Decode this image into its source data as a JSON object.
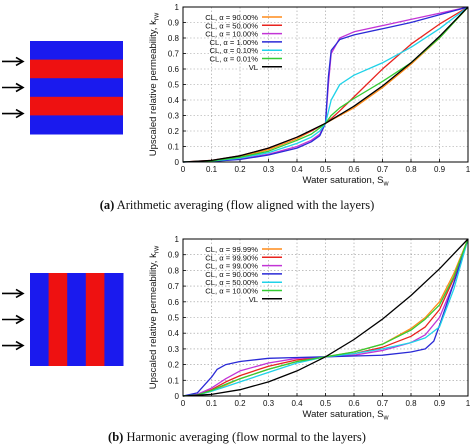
{
  "chart_data": [
    {
      "type": "line",
      "panel_label": "(a)",
      "caption": "Arithmetic averaging (flow aligned with the layers)",
      "xlabel": "Water saturation, S",
      "xlabel_sub": "w",
      "ylabel": "Upscaled relative permeability, k",
      "ylabel_sub": "rw",
      "xlim": [
        0,
        1
      ],
      "ylim": [
        0,
        1
      ],
      "xticks": [
        "0",
        "0.1",
        "0.2",
        "0.3",
        "0.4",
        "0.5",
        "0.6",
        "0.7",
        "0.8",
        "0.9",
        "1"
      ],
      "yticks": [
        "0",
        "0.1",
        "0.2",
        "0.3",
        "0.4",
        "0.5",
        "0.6",
        "0.7",
        "0.8",
        "0.9",
        "1"
      ],
      "grid": true,
      "legend_position": "top-left",
      "layer_sketch": "horizontal",
      "series": [
        {
          "name": "CL, α = 90.00%",
          "color": "#ff8c1a",
          "x": [
            0,
            0.1,
            0.2,
            0.3,
            0.4,
            0.45,
            0.48,
            0.5,
            0.52,
            0.55,
            0.6,
            0.7,
            0.8,
            0.9,
            1
          ],
          "y": [
            0,
            0.008,
            0.035,
            0.08,
            0.15,
            0.2,
            0.23,
            0.25,
            0.27,
            0.3,
            0.35,
            0.48,
            0.63,
            0.8,
            1
          ]
        },
        {
          "name": "CL, α = 50.00%",
          "color": "#e8231e",
          "x": [
            0,
            0.1,
            0.2,
            0.3,
            0.4,
            0.45,
            0.48,
            0.5,
            0.52,
            0.55,
            0.6,
            0.7,
            0.8,
            0.9,
            1
          ],
          "y": [
            0,
            0.01,
            0.04,
            0.09,
            0.16,
            0.2,
            0.23,
            0.25,
            0.28,
            0.33,
            0.42,
            0.6,
            0.76,
            0.89,
            1
          ]
        },
        {
          "name": "CL, α = 10.00%",
          "color": "#c234d6",
          "x": [
            0,
            0.1,
            0.2,
            0.3,
            0.4,
            0.45,
            0.48,
            0.5,
            0.51,
            0.52,
            0.55,
            0.6,
            0.7,
            0.8,
            0.9,
            1
          ],
          "y": [
            0,
            0.005,
            0.02,
            0.05,
            0.1,
            0.14,
            0.18,
            0.25,
            0.5,
            0.7,
            0.8,
            0.84,
            0.88,
            0.92,
            0.96,
            1
          ]
        },
        {
          "name": "CL, α = 1.00%",
          "color": "#2a2ad6",
          "x": [
            0,
            0.1,
            0.2,
            0.3,
            0.4,
            0.45,
            0.48,
            0.5,
            0.51,
            0.52,
            0.55,
            0.6,
            0.7,
            0.8,
            0.9,
            1
          ],
          "y": [
            0,
            0.004,
            0.016,
            0.045,
            0.09,
            0.13,
            0.17,
            0.25,
            0.55,
            0.72,
            0.79,
            0.82,
            0.86,
            0.9,
            0.95,
            1
          ]
        },
        {
          "name": "CL, α = 0.10%",
          "color": "#1fd2e8",
          "x": [
            0,
            0.1,
            0.2,
            0.3,
            0.4,
            0.45,
            0.48,
            0.5,
            0.52,
            0.55,
            0.6,
            0.7,
            0.8,
            0.9,
            1
          ],
          "y": [
            0,
            0.006,
            0.025,
            0.06,
            0.12,
            0.16,
            0.2,
            0.25,
            0.4,
            0.5,
            0.56,
            0.64,
            0.74,
            0.86,
            1
          ]
        },
        {
          "name": "CL, α = 0.01%",
          "color": "#33cc33",
          "x": [
            0,
            0.1,
            0.2,
            0.3,
            0.4,
            0.45,
            0.48,
            0.5,
            0.52,
            0.55,
            0.6,
            0.7,
            0.8,
            0.9,
            1
          ],
          "y": [
            0,
            0.007,
            0.03,
            0.07,
            0.14,
            0.18,
            0.22,
            0.25,
            0.3,
            0.35,
            0.41,
            0.52,
            0.64,
            0.8,
            1
          ]
        },
        {
          "name": "VL",
          "color": "#000000",
          "x": [
            0,
            0.1,
            0.2,
            0.3,
            0.4,
            0.5,
            0.6,
            0.7,
            0.8,
            0.9,
            1
          ],
          "y": [
            0,
            0.01,
            0.04,
            0.09,
            0.16,
            0.25,
            0.36,
            0.49,
            0.64,
            0.81,
            1
          ]
        }
      ]
    },
    {
      "type": "line",
      "panel_label": "(b)",
      "caption": "Harmonic averaging (flow normal to the layers)",
      "xlabel": "Water saturation, S",
      "xlabel_sub": "w",
      "ylabel": "Upscaled relative permeability, k",
      "ylabel_sub": "rw",
      "xlim": [
        0,
        1
      ],
      "ylim": [
        0,
        1
      ],
      "xticks": [
        "0",
        "0.1",
        "0.2",
        "0.3",
        "0.4",
        "0.5",
        "0.6",
        "0.7",
        "0.8",
        "0.9",
        "1"
      ],
      "yticks": [
        "0",
        "0.1",
        "0.2",
        "0.3",
        "0.4",
        "0.5",
        "0.6",
        "0.7",
        "0.8",
        "0.9",
        "1"
      ],
      "grid": true,
      "legend_position": "top-left",
      "layer_sketch": "vertical",
      "series": [
        {
          "name": "CL, α = 99.99%",
          "color": "#ff8c1a",
          "x": [
            0,
            0.05,
            0.1,
            0.15,
            0.2,
            0.3,
            0.4,
            0.5,
            0.6,
            0.7,
            0.8,
            0.85,
            0.9,
            0.95,
            1
          ],
          "y": [
            0,
            0.005,
            0.03,
            0.07,
            0.11,
            0.17,
            0.22,
            0.25,
            0.28,
            0.33,
            0.43,
            0.5,
            0.6,
            0.78,
            1
          ]
        },
        {
          "name": "CL, α = 99.90%",
          "color": "#e8231e",
          "x": [
            0,
            0.05,
            0.1,
            0.15,
            0.2,
            0.3,
            0.4,
            0.5,
            0.6,
            0.7,
            0.8,
            0.85,
            0.9,
            0.95,
            1
          ],
          "y": [
            0,
            0.008,
            0.04,
            0.09,
            0.13,
            0.19,
            0.23,
            0.25,
            0.27,
            0.31,
            0.38,
            0.44,
            0.55,
            0.75,
            1
          ]
        },
        {
          "name": "CL, α = 99.00%",
          "color": "#c234d6",
          "x": [
            0,
            0.05,
            0.1,
            0.15,
            0.2,
            0.3,
            0.4,
            0.5,
            0.6,
            0.7,
            0.8,
            0.85,
            0.9,
            0.95,
            1
          ],
          "y": [
            0,
            0.01,
            0.05,
            0.11,
            0.16,
            0.21,
            0.24,
            0.25,
            0.26,
            0.29,
            0.34,
            0.39,
            0.5,
            0.72,
            1
          ]
        },
        {
          "name": "CL, α = 90.00%",
          "color": "#2a2ad6",
          "x": [
            0,
            0.05,
            0.1,
            0.12,
            0.15,
            0.2,
            0.3,
            0.4,
            0.5,
            0.6,
            0.7,
            0.8,
            0.85,
            0.88,
            0.9,
            0.95,
            1
          ],
          "y": [
            0,
            0.02,
            0.12,
            0.17,
            0.2,
            0.22,
            0.24,
            0.245,
            0.25,
            0.255,
            0.26,
            0.28,
            0.3,
            0.35,
            0.45,
            0.72,
            1
          ]
        },
        {
          "name": "CL, α = 50.00%",
          "color": "#1fd2e8",
          "x": [
            0,
            0.05,
            0.1,
            0.15,
            0.2,
            0.3,
            0.4,
            0.5,
            0.6,
            0.7,
            0.8,
            0.85,
            0.9,
            0.95,
            1
          ],
          "y": [
            0,
            0.006,
            0.03,
            0.06,
            0.09,
            0.15,
            0.21,
            0.25,
            0.27,
            0.3,
            0.34,
            0.37,
            0.44,
            0.68,
            1
          ]
        },
        {
          "name": "CL, α = 10.00%",
          "color": "#33cc33",
          "x": [
            0,
            0.05,
            0.1,
            0.15,
            0.2,
            0.3,
            0.4,
            0.5,
            0.6,
            0.7,
            0.8,
            0.85,
            0.9,
            0.95,
            1
          ],
          "y": [
            0,
            0.007,
            0.035,
            0.075,
            0.11,
            0.17,
            0.22,
            0.25,
            0.28,
            0.33,
            0.42,
            0.49,
            0.58,
            0.76,
            1
          ]
        },
        {
          "name": "VL",
          "color": "#000000",
          "x": [
            0,
            0.1,
            0.2,
            0.3,
            0.4,
            0.5,
            0.6,
            0.7,
            0.8,
            0.9,
            1
          ],
          "y": [
            0,
            0.01,
            0.04,
            0.09,
            0.16,
            0.25,
            0.36,
            0.49,
            0.64,
            0.81,
            1
          ]
        }
      ]
    }
  ],
  "colors": {
    "layer_red": "#ee1111",
    "layer_blue": "#1a1aee",
    "grid": "#9a9a9a"
  }
}
